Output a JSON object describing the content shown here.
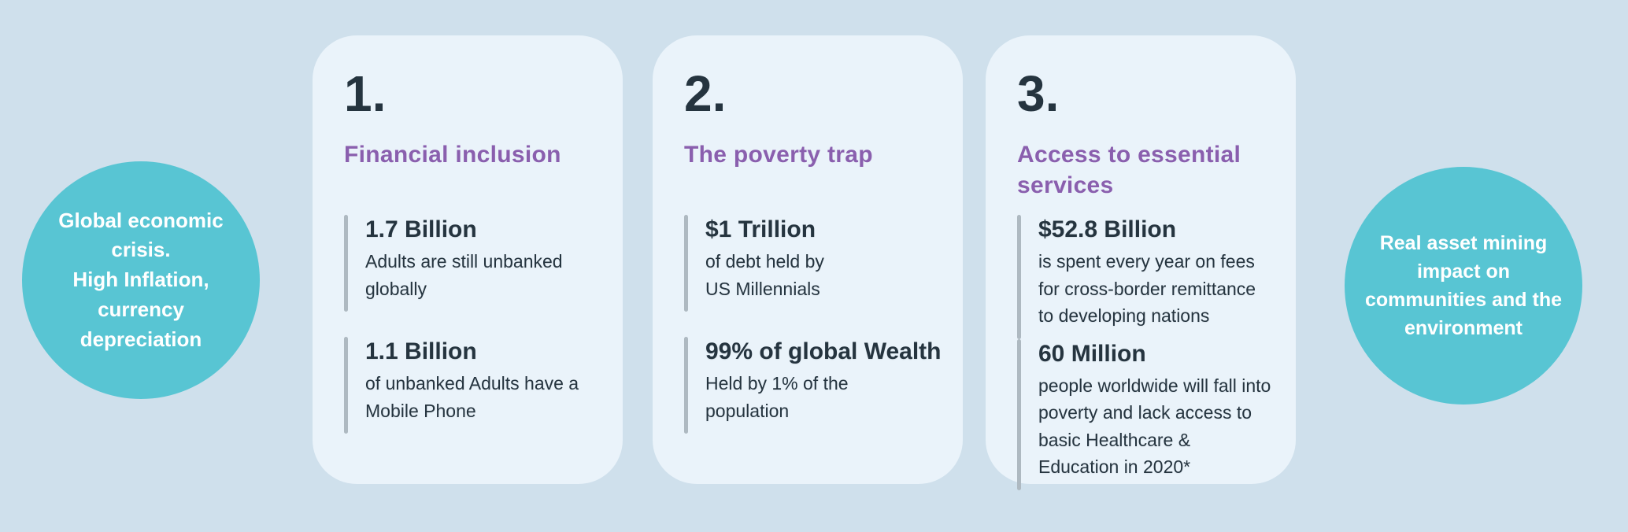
{
  "theme": {
    "background": "#cfe0ec",
    "card_background": "#eaf3fa",
    "circle_color": "#58c5d3",
    "circle_text_color": "#ffffff",
    "heading_color": "#8a5fae",
    "text_color": "#25343f",
    "divider_color": "#aeb9c1"
  },
  "left_circle": {
    "text": "Global economic\ncrisis.\nHigh Inflation,\ncurrency\ndepreciation"
  },
  "right_circle": {
    "text": "Real asset  mining\nimpact on\ncommunities and the\nenvironment"
  },
  "cards": [
    {
      "number": "1.",
      "title": "Financial inclusion",
      "stats": [
        {
          "value": "1.7 Billion",
          "desc": "Adults are still unbanked\nglobally"
        },
        {
          "value": "1.1 Billion",
          "desc": "of unbanked Adults have a\nMobile Phone"
        }
      ]
    },
    {
      "number": "2.",
      "title": "The poverty trap",
      "stats": [
        {
          "value": "$1 Trillion",
          "desc": "of debt held by\nUS Millennials"
        },
        {
          "value": "99% of global Wealth",
          "desc": "Held by 1% of the\npopulation"
        }
      ]
    },
    {
      "number": "3.",
      "title": "Access to essential services",
      "stats": [
        {
          "value": "$52.8 Billion",
          "desc": "is spent every year on fees for cross-border remittance to developing nations"
        },
        {
          "value": "60 Million",
          "desc": "people worldwide will fall into poverty and lack access to basic Healthcare & Education in 2020*"
        }
      ]
    }
  ]
}
